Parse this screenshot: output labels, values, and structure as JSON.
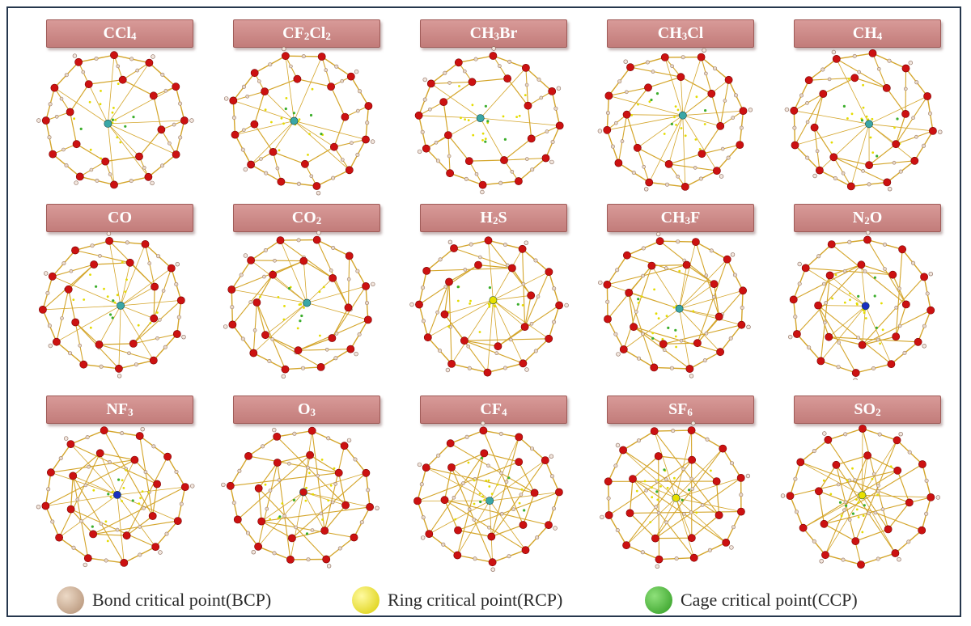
{
  "panels": [
    {
      "label": "CCl",
      "sub": "4",
      "guest": "teal"
    },
    {
      "label": "CF",
      "sub": "2",
      "label2": "Cl",
      "sub2": "2",
      "guest": "teal"
    },
    {
      "label": "CH",
      "sub": "3",
      "label2": "Br",
      "guest": "teal"
    },
    {
      "label": "CH",
      "sub": "3",
      "label2": "Cl",
      "guest": "teal"
    },
    {
      "label": "CH",
      "sub": "4",
      "guest": "teal"
    },
    {
      "label": "CO",
      "guest": "teal"
    },
    {
      "label": "CO",
      "sub": "2",
      "guest": "teal"
    },
    {
      "label": "H",
      "sub": "2",
      "label2": "S",
      "guest": "yellow"
    },
    {
      "label": "CH",
      "sub": "3",
      "label2": "F",
      "guest": "teal"
    },
    {
      "label": "N",
      "sub": "2",
      "label2": "O",
      "guest": "blue"
    },
    {
      "label": "NF",
      "sub": "3",
      "guest": "blue"
    },
    {
      "label": "O",
      "sub": "3",
      "guest": "red"
    },
    {
      "label": "CF",
      "sub": "4",
      "guest": "teal"
    },
    {
      "label": "SF",
      "sub": "6",
      "guest": "yellow"
    },
    {
      "label": "SO",
      "sub": "2",
      "guest": "yellow"
    }
  ],
  "legend": [
    {
      "label": "Bond critical point(BCP)",
      "color": "#c9a88a"
    },
    {
      "label": "Ring critical point(RCP)",
      "color": "#f2ea00"
    },
    {
      "label": "Cage critical point(CCP)",
      "color": "#3cae2c"
    }
  ],
  "colors": {
    "oxygen": "#cc1111",
    "hydrogen": "#efe4dc",
    "bond": "#d4a52a",
    "frame": "#26374d",
    "banner": "#c98886"
  }
}
